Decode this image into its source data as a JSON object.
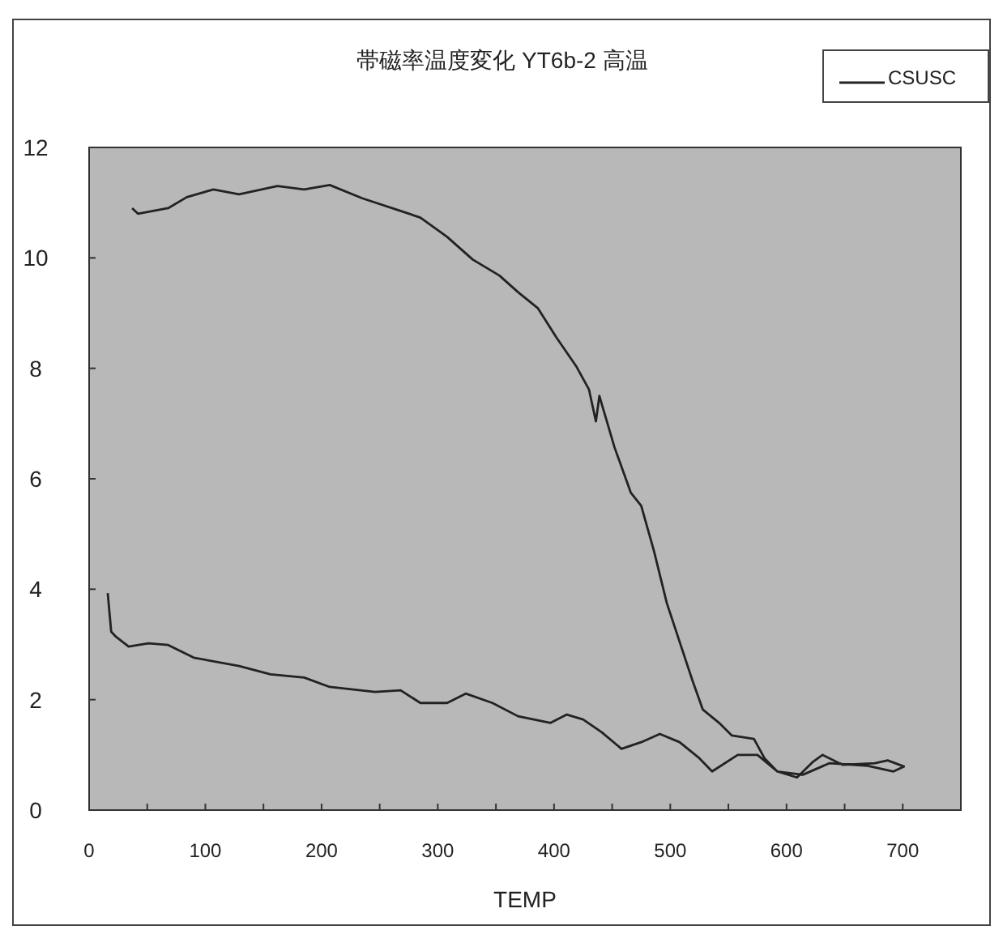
{
  "chart_data": {
    "type": "line",
    "title": "帯磁率温度変化 YT6b-2 高温",
    "xlabel": "TEMP",
    "series": [
      {
        "name": "CSUSC",
        "color": "#222222",
        "x": [
          37,
          42,
          68,
          84,
          107,
          129,
          162,
          185,
          207,
          235,
          268,
          285,
          308,
          330,
          353,
          369,
          386,
          402,
          419,
          430,
          436,
          439,
          452,
          466,
          475,
          486,
          497,
          508,
          519,
          528,
          542,
          553,
          572,
          581,
          592,
          609,
          623,
          631,
          648,
          676,
          687,
          701,
          692,
          670,
          637,
          614,
          592,
          575,
          558,
          536,
          525,
          508,
          491,
          475,
          458,
          441,
          425,
          411,
          397,
          369,
          347,
          324,
          308,
          285,
          268,
          246,
          207,
          185,
          156,
          129,
          90,
          68,
          51,
          34,
          23,
          19,
          16
        ],
        "values": [
          10.9,
          10.8,
          10.9,
          11.1,
          11.24,
          11.15,
          11.3,
          11.24,
          11.32,
          11.08,
          10.85,
          10.73,
          10.38,
          9.97,
          9.68,
          9.38,
          9.09,
          8.56,
          8.04,
          7.62,
          7.04,
          7.5,
          6.57,
          5.75,
          5.51,
          4.69,
          3.75,
          3.05,
          2.35,
          1.82,
          1.58,
          1.35,
          1.29,
          0.94,
          0.7,
          0.59,
          0.88,
          1.0,
          0.82,
          0.85,
          0.9,
          0.79,
          0.7,
          0.8,
          0.85,
          0.64,
          0.7,
          1.0,
          1.0,
          0.7,
          0.94,
          1.23,
          1.38,
          1.23,
          1.11,
          1.41,
          1.64,
          1.73,
          1.58,
          1.7,
          1.94,
          2.11,
          1.94,
          1.94,
          2.17,
          2.14,
          2.23,
          2.4,
          2.46,
          2.61,
          2.76,
          2.99,
          3.02,
          2.96,
          3.14,
          3.23,
          3.93
        ]
      }
    ],
    "xlim": [
      0,
      750
    ],
    "xticks": [
      0,
      {
        "value": 50,
        "label": null
      },
      100,
      {
        "value": 150,
        "label": null
      },
      200,
      {
        "value": 250,
        "label": null
      },
      300,
      {
        "value": 350,
        "label": null
      },
      400,
      {
        "value": 450,
        "label": null
      },
      500,
      {
        "value": 550,
        "label": null
      },
      600,
      {
        "value": 650,
        "label": null
      },
      700
    ],
    "ylim": [
      0,
      12
    ],
    "yticks": [
      0,
      2,
      4,
      6,
      8,
      10,
      12
    ],
    "legend": "top right",
    "grid": false
  }
}
